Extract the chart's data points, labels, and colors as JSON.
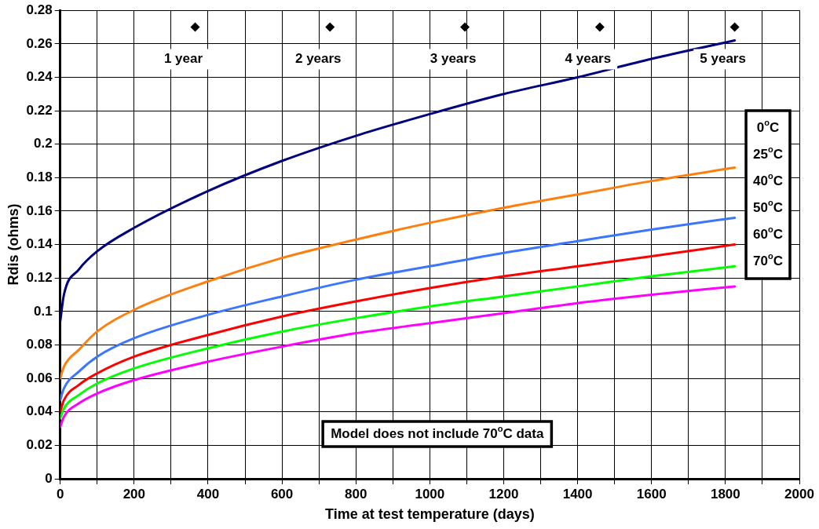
{
  "chart_data": {
    "type": "line",
    "xlabel": "Time at test temperature (days)",
    "ylabel": "Rdis (ohms)",
    "xlim": [
      0,
      2000
    ],
    "xticks": [
      0,
      {
        "value": 100,
        "label": null
      },
      200,
      {
        "value": 300,
        "label": null
      },
      400,
      {
        "value": 500,
        "label": null
      },
      600,
      {
        "value": 700,
        "label": null
      },
      800,
      {
        "value": 900,
        "label": null
      },
      1000,
      {
        "value": 1100,
        "label": null
      },
      1200,
      {
        "value": 1300,
        "label": null
      },
      1400,
      {
        "value": 1500,
        "label": null
      },
      1600,
      {
        "value": 1700,
        "label": null
      },
      1800,
      {
        "value": 1900,
        "label": null
      },
      2000
    ],
    "ylim": [
      0,
      0.28
    ],
    "yticks": [
      0,
      0.02,
      0.04,
      0.06,
      0.08,
      0.1,
      0.12,
      0.14,
      0.16,
      0.18,
      0.2,
      0.22,
      0.24,
      0.26,
      0.28
    ],
    "grid": true,
    "legend": "right",
    "line_style": "solid",
    "x": [
      0,
      10,
      50,
      100,
      200,
      400,
      600,
      800,
      1000,
      1200,
      1400,
      1600,
      1825
    ],
    "series": [
      {
        "name": "0$^{o}$C",
        "color": "#000080",
        "marker": "none",
        "values": [
          0.094,
          0.11,
          0.125,
          0.136,
          0.15,
          0.172,
          0.19,
          0.205,
          0.218,
          0.23,
          0.24,
          0.251,
          0.262
        ]
      },
      {
        "name": "25$^{o}$C",
        "color": "#ff7f0e",
        "marker": "none",
        "values": [
          0.06,
          0.067,
          0.077,
          0.088,
          0.101,
          0.118,
          0.132,
          0.143,
          0.153,
          0.162,
          0.17,
          0.178,
          0.186
        ]
      },
      {
        "name": "40$^{o}$C",
        "color": "#3b76ff",
        "marker": "none",
        "values": [
          0.047,
          0.054,
          0.064,
          0.073,
          0.084,
          0.098,
          0.109,
          0.119,
          0.127,
          0.135,
          0.142,
          0.149,
          0.156
        ]
      },
      {
        "name": "50$^{o}$C",
        "color": "#ff0000",
        "marker": "none",
        "values": [
          0.04,
          0.047,
          0.056,
          0.063,
          0.073,
          0.086,
          0.097,
          0.106,
          0.114,
          0.121,
          0.127,
          0.133,
          0.14
        ]
      },
      {
        "name": "60$^{o}$C",
        "color": "#00ff00",
        "marker": "none",
        "values": [
          0.036,
          0.042,
          0.05,
          0.057,
          0.066,
          0.078,
          0.088,
          0.096,
          0.103,
          0.109,
          0.115,
          0.121,
          0.127
        ]
      },
      {
        "name": "70$^{o}$C",
        "color": "#ff00ff",
        "marker": "none",
        "values": [
          0.031,
          0.037,
          0.045,
          0.051,
          0.059,
          0.07,
          0.079,
          0.087,
          0.093,
          0.099,
          0.105,
          0.11,
          0.115
        ]
      },
      {
        "type": "scatter",
        "color": "#000000",
        "marker": "diamond",
        "x": [
          365,
          730,
          1095,
          1460,
          1825
        ],
        "values": [
          0.27,
          0.27,
          0.27,
          0.27,
          0.27
        ]
      }
    ],
    "annotations": [
      {
        "text": "1 year",
        "x": 365,
        "y": 0.27
      },
      {
        "text": "2 years",
        "x": 730,
        "y": 0.27
      },
      {
        "text": "3 years",
        "x": 1095,
        "y": 0.27
      },
      {
        "text": "4 years",
        "x": 1460,
        "y": 0.27
      },
      {
        "text": "5 years",
        "x": 1825,
        "y": 0.27
      },
      "Model does not include 70$^{o}$C data"
    ]
  }
}
